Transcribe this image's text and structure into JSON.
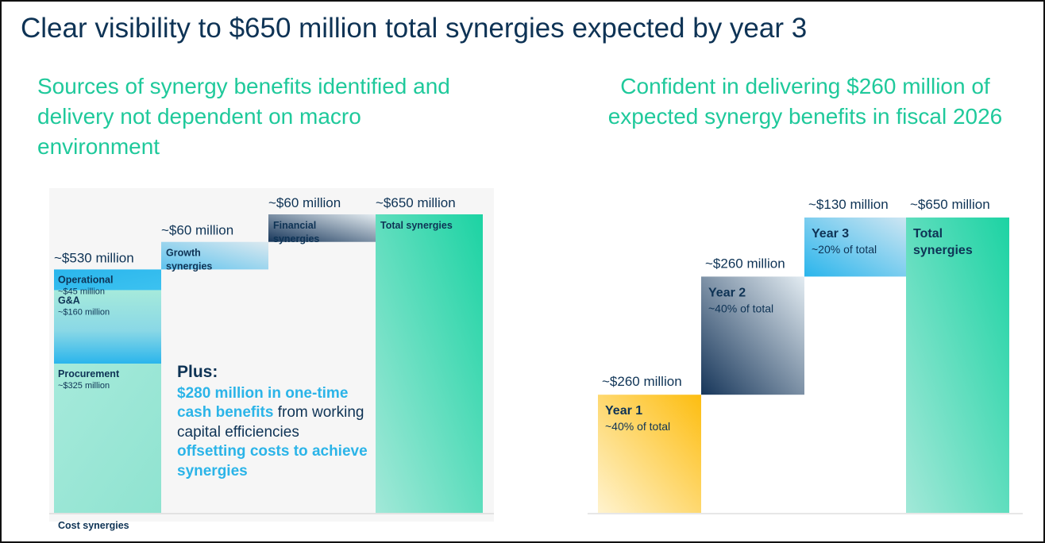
{
  "title": "Clear visibility to $650 million total synergies expected by year 3",
  "left_subtitle": "Sources of synergy benefits identified and delivery not dependent on macro environment",
  "right_subtitle": "Confident in delivering $260 million of expected synergy benefits in fiscal 2026",
  "plus_note": {
    "heading": "Plus:",
    "highlight_1": "$280 million in one-time cash benefits",
    "text": "from working capital efficiencies",
    "highlight_2": "offsetting costs to achieve synergies"
  },
  "colors": {
    "title": "#0e3355",
    "subtitle": "#1fc99b",
    "dark_blue": "#17365a",
    "light_blue": "#2ab5ec",
    "teal": "#1cd3a3",
    "gold": "#fdbd10"
  },
  "chart_data": [
    {
      "type": "bar",
      "subtype": "waterfall",
      "ylim": [
        0,
        650
      ],
      "xlabel": "Cost synergies",
      "bars": [
        {
          "label": "~$530 million",
          "start": 0,
          "end": 530,
          "segments": [
            {
              "name": "Procurement",
              "sub": "~$325 million",
              "value": 325,
              "fill": "teal"
            },
            {
              "name": "G&A",
              "sub": "~$160 million",
              "value": 160,
              "fill": "ga"
            },
            {
              "name": "Operational",
              "sub": "~$45 million",
              "value": 45,
              "fill": "blue"
            }
          ]
        },
        {
          "label": "~$60 million",
          "name": "Growth synergies",
          "start": 530,
          "end": 590,
          "fill": "growth"
        },
        {
          "label": "~$60 million",
          "name": "Financial synergies",
          "start": 590,
          "end": 650,
          "fill": "fin"
        },
        {
          "label": "~$650 million",
          "name": "Total synergies",
          "start": 0,
          "end": 650,
          "fill": "total"
        }
      ]
    },
    {
      "type": "bar",
      "subtype": "waterfall",
      "ylim": [
        0,
        650
      ],
      "bars": [
        {
          "label": "~$260 million",
          "name": "Year 1",
          "sub": "~40% of total",
          "start": 0,
          "end": 260,
          "fill": "year1"
        },
        {
          "label": "~$260 million",
          "name": "Year 2",
          "sub": "~40% of total",
          "start": 260,
          "end": 520,
          "fill": "year2"
        },
        {
          "label": "~$130 million",
          "name": "Year 3",
          "sub": "~20% of total",
          "start": 520,
          "end": 650,
          "fill": "year3"
        },
        {
          "label": "~$650 million",
          "name": "Total synergies",
          "start": 0,
          "end": 650,
          "fill": "total"
        }
      ]
    }
  ]
}
